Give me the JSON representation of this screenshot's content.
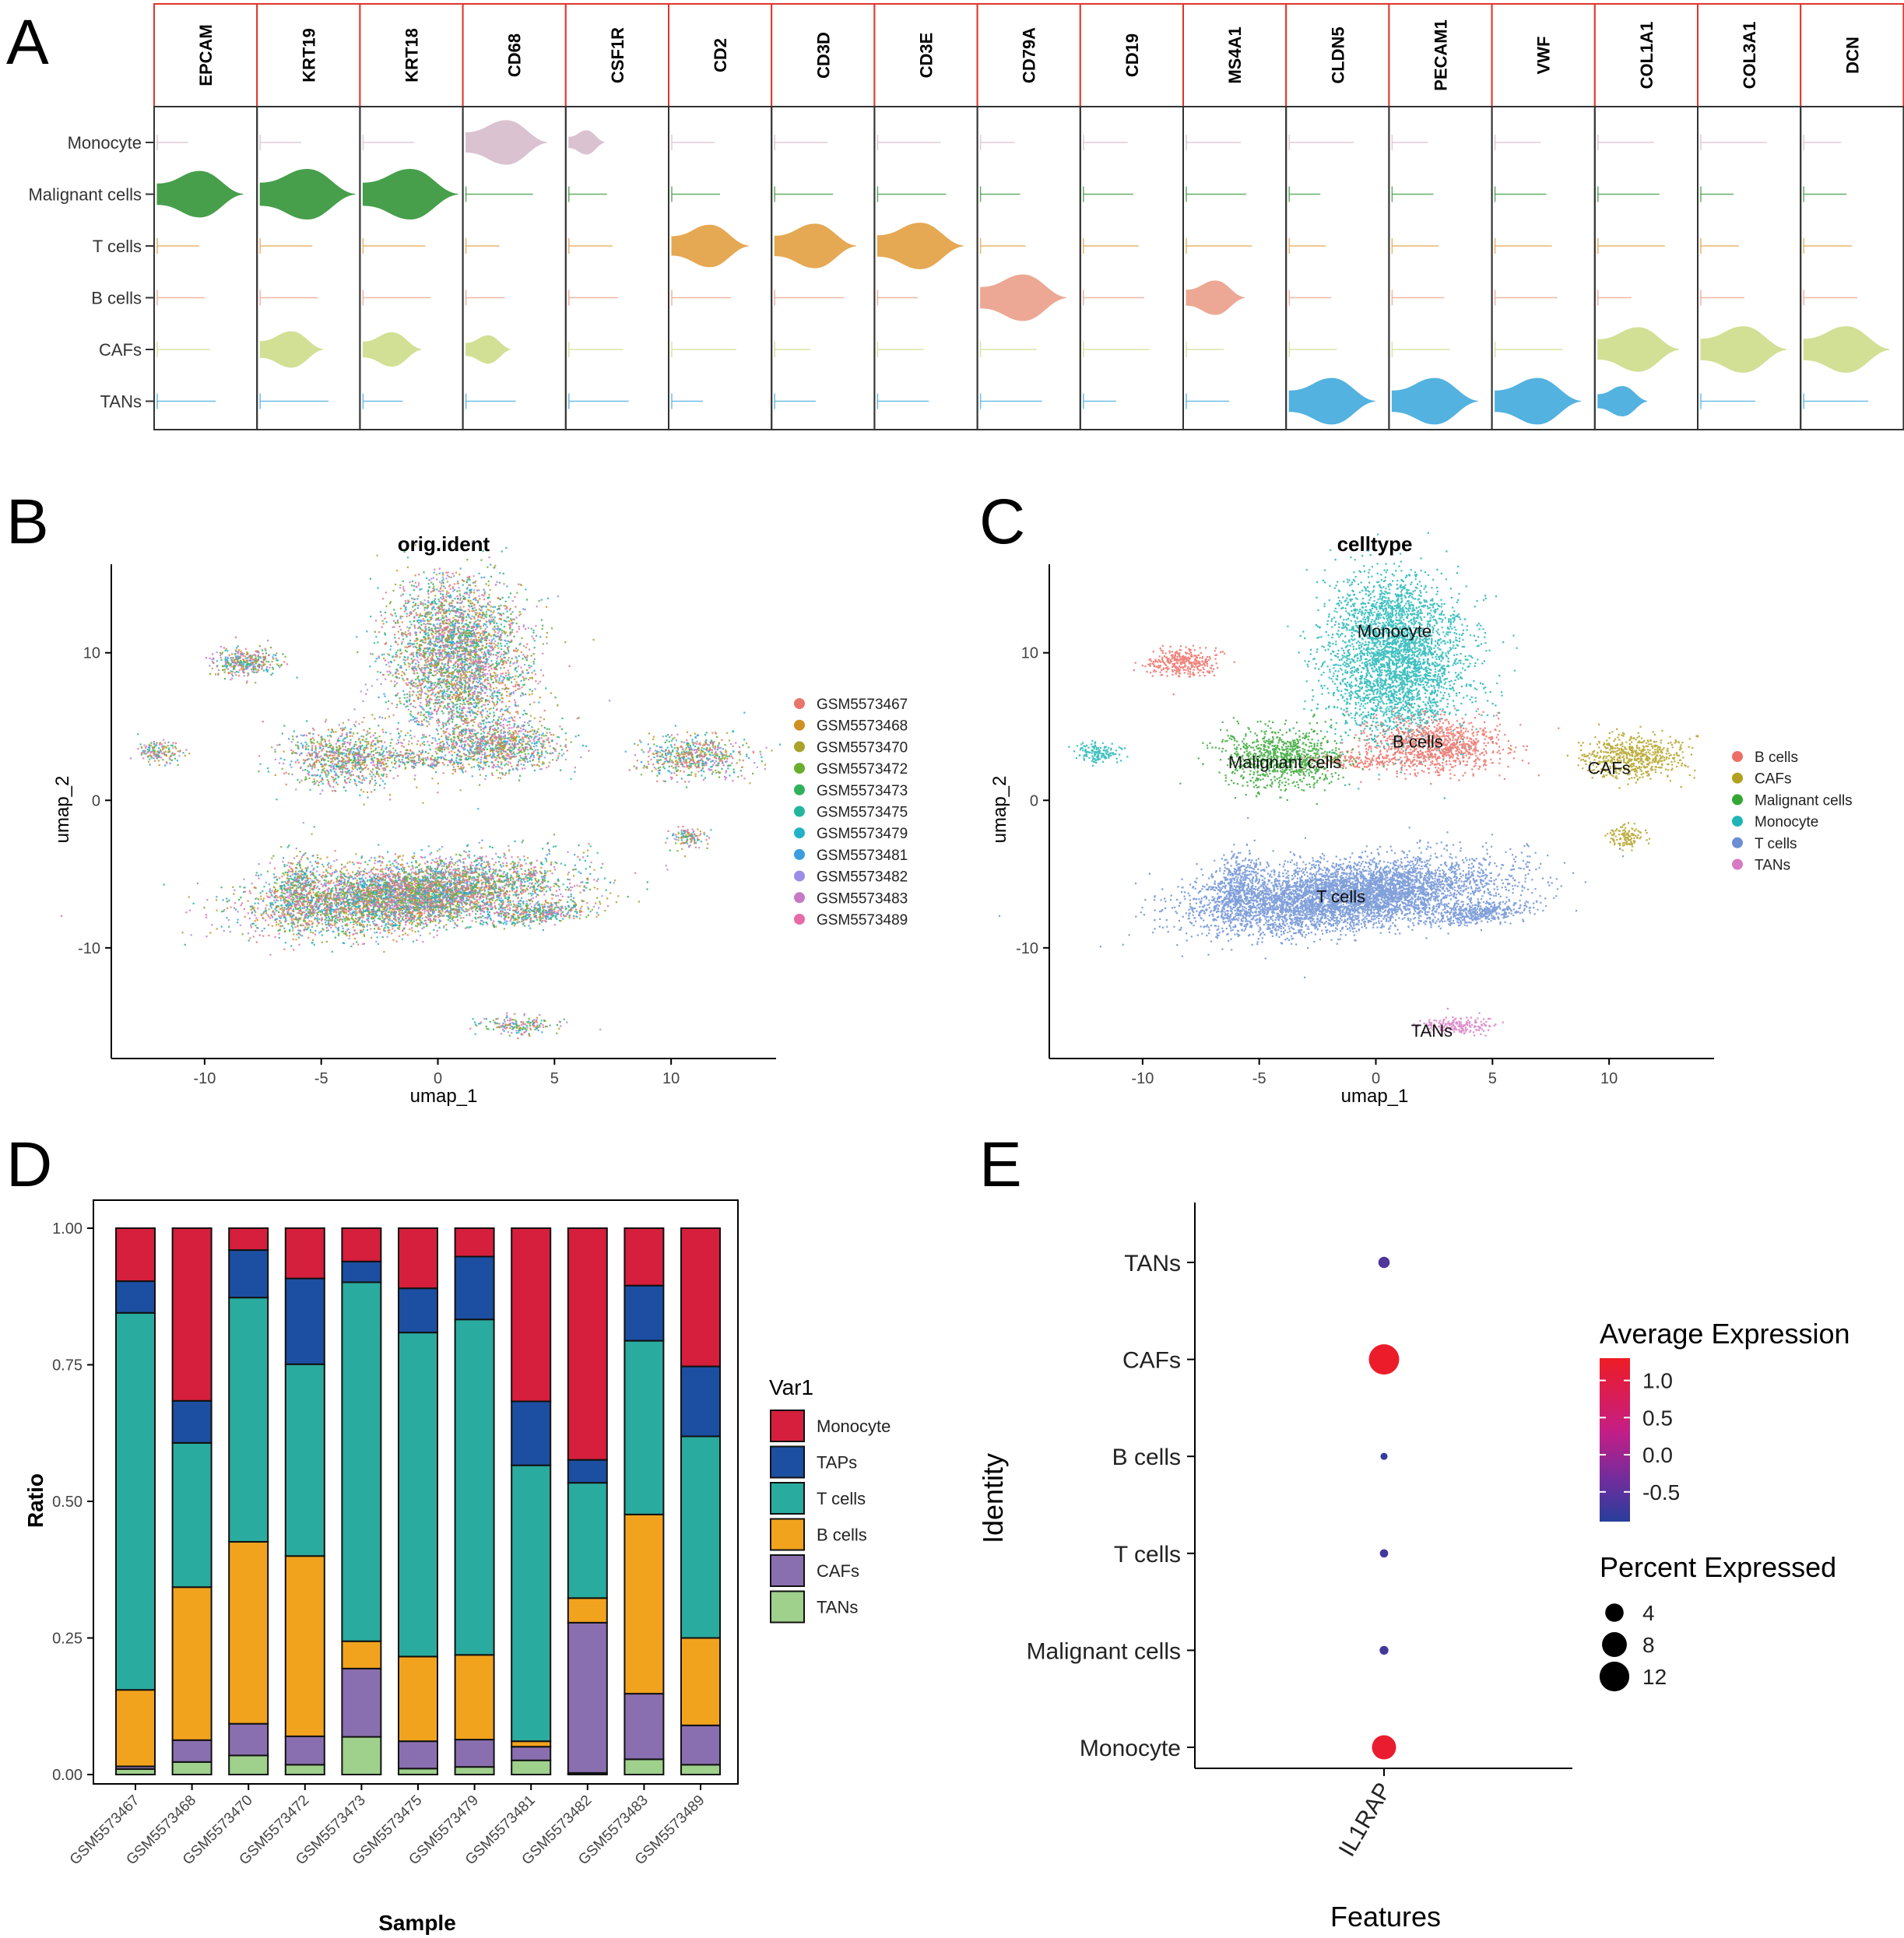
{
  "panel_labels": [
    "A",
    "B",
    "C",
    "D",
    "E"
  ],
  "chart_data": [
    {
      "panel": "A",
      "type": "violin",
      "genes": [
        "EPCAM",
        "KRT19",
        "KRT18",
        "CD68",
        "CSF1R",
        "CD2",
        "CD3D",
        "CD3E",
        "CD79A",
        "CD19",
        "MS4A1",
        "CLDN5",
        "PECAM1",
        "VWF",
        "COL1A1",
        "COL3A1",
        "DCN"
      ],
      "cell_types": [
        "Monocyte",
        "Malignant cells",
        "T cells",
        "B cells",
        "CAFs",
        "TANs"
      ],
      "colors": [
        "#d9bfcf",
        "#3e9a43",
        "#e4a44a",
        "#eba48f",
        "#cfdf90",
        "#4aaedf"
      ],
      "expression_strength": [
        [
          0,
          0,
          0,
          0.85,
          0.35,
          0,
          0,
          0,
          0,
          0,
          0,
          0,
          0,
          0,
          0,
          0,
          0
        ],
        [
          0.9,
          1,
          1,
          0,
          0,
          0,
          0,
          0,
          0,
          0,
          0,
          0,
          0,
          0,
          0,
          0,
          0
        ],
        [
          0,
          0,
          0,
          0,
          0,
          0.8,
          0.85,
          0.9,
          0,
          0,
          0,
          0,
          0,
          0,
          0,
          0,
          0
        ],
        [
          0,
          0,
          0,
          0,
          0,
          0,
          0,
          0,
          0.9,
          0,
          0.6,
          0,
          0,
          0,
          0,
          0,
          0
        ],
        [
          0,
          0.65,
          0.6,
          0.45,
          0,
          0,
          0,
          0,
          0,
          0,
          0,
          0,
          0,
          0,
          0.85,
          0.9,
          0.9
        ],
        [
          0,
          0,
          0,
          0,
          0,
          0,
          0,
          0,
          0,
          0,
          0,
          0.9,
          0.9,
          0.9,
          0.5,
          0,
          0
        ]
      ]
    },
    {
      "panel": "B",
      "type": "scatter",
      "title": "orig.ident",
      "xlabel": "umap_1",
      "ylabel": "umap_2",
      "xlim": [
        -14,
        14.5
      ],
      "ylim": [
        -17.5,
        16
      ],
      "xticks": [
        -10,
        -5,
        0,
        5,
        10
      ],
      "yticks": [
        -10,
        0,
        10
      ],
      "legend": [
        "GSM5573467",
        "GSM5573468",
        "GSM5573470",
        "GSM5573472",
        "GSM5573473",
        "GSM5573475",
        "GSM5573479",
        "GSM5573481",
        "GSM5573482",
        "GSM5573483",
        "GSM5573489"
      ],
      "legend_colors": [
        "#e8756a",
        "#cf9022",
        "#a9a32a",
        "#6aae2e",
        "#2fb25a",
        "#22b69b",
        "#21b1c9",
        "#3b9ce0",
        "#9b8ee6",
        "#c67ac6",
        "#e76aa8"
      ]
    },
    {
      "panel": "C",
      "type": "scatter",
      "title": "celltype",
      "xlabel": "umap_1",
      "ylabel": "umap_2",
      "xlim": [
        -14,
        14.5
      ],
      "ylim": [
        -17.5,
        16
      ],
      "xticks": [
        -10,
        -5,
        0,
        5,
        10
      ],
      "yticks": [
        -10,
        0,
        10
      ],
      "legend": [
        "B cells",
        "CAFs",
        "Malignant cells",
        "Monocyte",
        "T cells",
        "TANs"
      ],
      "legend_colors": [
        "#ec6f66",
        "#b2a01e",
        "#35a635",
        "#1fb5b5",
        "#6b8fd4",
        "#d77ac3"
      ],
      "cluster_labels": [
        "Monocyte",
        "B cells",
        "Malignant cells",
        "CAFs",
        "T cells",
        "TANs"
      ]
    },
    {
      "panel": "D",
      "type": "bar",
      "stacked": true,
      "xlabel": "Sample",
      "ylabel": "Ratio",
      "ylim": [
        0,
        1
      ],
      "yticks": [
        "0.00",
        "0.25",
        "0.50",
        "0.75",
        "1.00"
      ],
      "legend_title": "Var1",
      "categories": [
        "GSM5573467",
        "GSM5573468",
        "GSM5573470",
        "GSM5573472",
        "GSM5573473",
        "GSM5573475",
        "GSM5573479",
        "GSM5573481",
        "GSM5573482",
        "GSM5573483",
        "GSM5573489"
      ],
      "series": [
        {
          "name": "Monocyte",
          "color": "#d51f3c",
          "values": [
            0.097,
            0.316,
            0.04,
            0.092,
            0.061,
            0.11,
            0.052,
            0.317,
            0.424,
            0.105,
            0.253
          ]
        },
        {
          "name": "TAPs",
          "color": "#1c4fa1",
          "values": [
            0.058,
            0.077,
            0.087,
            0.157,
            0.038,
            0.081,
            0.115,
            0.117,
            0.042,
            0.101,
            0.128
          ]
        },
        {
          "name": "T cells",
          "color": "#2aab9f",
          "values": [
            0.69,
            0.264,
            0.447,
            0.351,
            0.657,
            0.593,
            0.614,
            0.505,
            0.211,
            0.318,
            0.369
          ]
        },
        {
          "name": "B cells",
          "color": "#f2a31e",
          "values": [
            0.14,
            0.28,
            0.333,
            0.33,
            0.05,
            0.155,
            0.155,
            0.01,
            0.045,
            0.328,
            0.16
          ]
        },
        {
          "name": "CAFs",
          "color": "#8a6fb0",
          "values": [
            0.005,
            0.04,
            0.058,
            0.052,
            0.125,
            0.05,
            0.05,
            0.025,
            0.275,
            0.12,
            0.072
          ]
        },
        {
          "name": "TANs",
          "color": "#9fd08c",
          "values": [
            0.01,
            0.023,
            0.035,
            0.018,
            0.069,
            0.011,
            0.014,
            0.026,
            0.003,
            0.028,
            0.018
          ]
        }
      ]
    },
    {
      "panel": "E",
      "type": "dot",
      "xlabel": "Features",
      "ylabel": "Identity",
      "feature": "IL1RAP",
      "identities": [
        "TANs",
        "CAFs",
        "B cells",
        "T cells",
        "Malignant cells",
        "Monocyte"
      ],
      "average_expression": [
        -0.6,
        1.25,
        -0.8,
        -0.7,
        -0.7,
        1.2
      ],
      "percent_expressed": [
        1.2,
        12.5,
        0.3,
        0.5,
        0.6,
        7.5
      ],
      "color_legend_title": "Average Expression",
      "color_ticks": [
        "1.0",
        "0.5",
        "0.0",
        "-0.5"
      ],
      "size_legend_title": "Percent Expressed",
      "size_ticks": [
        "4",
        "8",
        "12"
      ]
    }
  ]
}
